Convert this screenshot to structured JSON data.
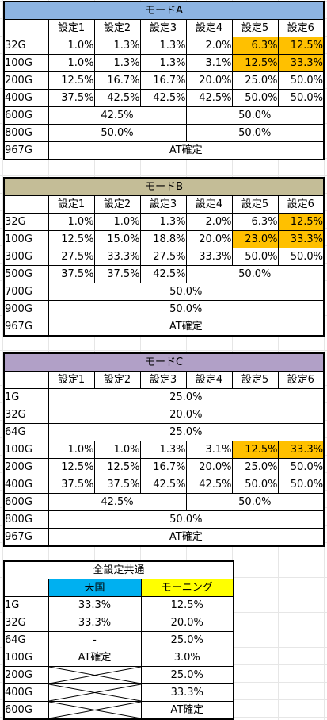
{
  "settings_header": [
    "設定1",
    "設定2",
    "設定3",
    "設定4",
    "設定5",
    "設定6"
  ],
  "mode_a": {
    "title": "モードA",
    "rows": [
      {
        "g": "32G",
        "cells": [
          {
            "v": "1.0%",
            "span": 1,
            "align": "num"
          },
          {
            "v": "1.3%",
            "span": 1,
            "align": "num"
          },
          {
            "v": "1.3%",
            "span": 1,
            "align": "num"
          },
          {
            "v": "2.0%",
            "span": 1,
            "align": "num"
          },
          {
            "v": "6.3%",
            "span": 1,
            "align": "num",
            "hl": true
          },
          {
            "v": "12.5%",
            "span": 1,
            "align": "num",
            "hl": true
          }
        ]
      },
      {
        "g": "100G",
        "cells": [
          {
            "v": "1.0%",
            "span": 1,
            "align": "num"
          },
          {
            "v": "1.3%",
            "span": 1,
            "align": "num"
          },
          {
            "v": "1.3%",
            "span": 1,
            "align": "num"
          },
          {
            "v": "3.1%",
            "span": 1,
            "align": "num"
          },
          {
            "v": "12.5%",
            "span": 1,
            "align": "num",
            "hl": true
          },
          {
            "v": "33.3%",
            "span": 1,
            "align": "num",
            "hl": true
          }
        ]
      },
      {
        "g": "200G",
        "cells": [
          {
            "v": "12.5%",
            "span": 1,
            "align": "num"
          },
          {
            "v": "16.7%",
            "span": 1,
            "align": "num"
          },
          {
            "v": "16.7%",
            "span": 1,
            "align": "num"
          },
          {
            "v": "20.0%",
            "span": 1,
            "align": "num"
          },
          {
            "v": "25.0%",
            "span": 1,
            "align": "num"
          },
          {
            "v": "50.0%",
            "span": 1,
            "align": "num"
          }
        ]
      },
      {
        "g": "400G",
        "cells": [
          {
            "v": "37.5%",
            "span": 1,
            "align": "num"
          },
          {
            "v": "42.5%",
            "span": 1,
            "align": "num"
          },
          {
            "v": "42.5%",
            "span": 1,
            "align": "num"
          },
          {
            "v": "42.5%",
            "span": 1,
            "align": "num"
          },
          {
            "v": "50.0%",
            "span": 1,
            "align": "num"
          },
          {
            "v": "50.0%",
            "span": 1,
            "align": "num"
          }
        ]
      },
      {
        "g": "600G",
        "cells": [
          {
            "v": "42.5%",
            "span": 3,
            "align": "ctr"
          },
          {
            "v": "50.0%",
            "span": 3,
            "align": "ctr"
          }
        ]
      },
      {
        "g": "800G",
        "cells": [
          {
            "v": "50.0%",
            "span": 3,
            "align": "ctr"
          },
          {
            "v": "50.0%",
            "span": 3,
            "align": "ctr"
          }
        ]
      },
      {
        "g": "967G",
        "cells": [
          {
            "v": "AT確定",
            "span": 6,
            "align": "ctr"
          }
        ]
      }
    ]
  },
  "mode_b": {
    "title": "モードB",
    "rows": [
      {
        "g": "32G",
        "cells": [
          {
            "v": "1.0%",
            "span": 1,
            "align": "num"
          },
          {
            "v": "1.0%",
            "span": 1,
            "align": "num"
          },
          {
            "v": "1.3%",
            "span": 1,
            "align": "num"
          },
          {
            "v": "2.0%",
            "span": 1,
            "align": "num"
          },
          {
            "v": "6.3%",
            "span": 1,
            "align": "num"
          },
          {
            "v": "12.5%",
            "span": 1,
            "align": "num",
            "hl": true
          }
        ]
      },
      {
        "g": "100G",
        "cells": [
          {
            "v": "12.5%",
            "span": 1,
            "align": "num"
          },
          {
            "v": "15.0%",
            "span": 1,
            "align": "num"
          },
          {
            "v": "18.8%",
            "span": 1,
            "align": "num"
          },
          {
            "v": "20.0%",
            "span": 1,
            "align": "num"
          },
          {
            "v": "23.0%",
            "span": 1,
            "align": "num",
            "hl": true
          },
          {
            "v": "33.3%",
            "span": 1,
            "align": "num",
            "hl": true
          }
        ]
      },
      {
        "g": "300G",
        "cells": [
          {
            "v": "27.5%",
            "span": 1,
            "align": "num"
          },
          {
            "v": "33.3%",
            "span": 1,
            "align": "num"
          },
          {
            "v": "27.5%",
            "span": 1,
            "align": "num"
          },
          {
            "v": "33.3%",
            "span": 1,
            "align": "num"
          },
          {
            "v": "50.0%",
            "span": 1,
            "align": "num"
          },
          {
            "v": "50.0%",
            "span": 1,
            "align": "num"
          }
        ]
      },
      {
        "g": "500G",
        "cells": [
          {
            "v": "37.5%",
            "span": 1,
            "align": "num"
          },
          {
            "v": "37.5%",
            "span": 1,
            "align": "num"
          },
          {
            "v": "42.5%",
            "span": 1,
            "align": "num"
          },
          {
            "v": "50.0%",
            "span": 3,
            "align": "ctr"
          }
        ]
      },
      {
        "g": "700G",
        "cells": [
          {
            "v": "50.0%",
            "span": 6,
            "align": "ctr"
          }
        ]
      },
      {
        "g": "900G",
        "cells": [
          {
            "v": "50.0%",
            "span": 6,
            "align": "ctr"
          }
        ]
      },
      {
        "g": "967G",
        "cells": [
          {
            "v": "AT確定",
            "span": 6,
            "align": "ctr"
          }
        ]
      }
    ]
  },
  "mode_c": {
    "title": "モードC",
    "rows": [
      {
        "g": "1G",
        "cells": [
          {
            "v": "25.0%",
            "span": 6,
            "align": "ctr"
          }
        ]
      },
      {
        "g": "32G",
        "cells": [
          {
            "v": "20.0%",
            "span": 6,
            "align": "ctr"
          }
        ]
      },
      {
        "g": "64G",
        "cells": [
          {
            "v": "25.0%",
            "span": 6,
            "align": "ctr"
          }
        ]
      },
      {
        "g": "100G",
        "cells": [
          {
            "v": "1.0%",
            "span": 1,
            "align": "num"
          },
          {
            "v": "1.0%",
            "span": 1,
            "align": "num"
          },
          {
            "v": "1.3%",
            "span": 1,
            "align": "num"
          },
          {
            "v": "3.1%",
            "span": 1,
            "align": "num"
          },
          {
            "v": "12.5%",
            "span": 1,
            "align": "num",
            "hl": true
          },
          {
            "v": "33.3%",
            "span": 1,
            "align": "num",
            "hl": true
          }
        ]
      },
      {
        "g": "200G",
        "cells": [
          {
            "v": "12.5%",
            "span": 1,
            "align": "num"
          },
          {
            "v": "12.5%",
            "span": 1,
            "align": "num"
          },
          {
            "v": "16.7%",
            "span": 1,
            "align": "num"
          },
          {
            "v": "20.0%",
            "span": 1,
            "align": "num"
          },
          {
            "v": "25.0%",
            "span": 1,
            "align": "num"
          },
          {
            "v": "50.0%",
            "span": 1,
            "align": "num"
          }
        ]
      },
      {
        "g": "400G",
        "cells": [
          {
            "v": "37.5%",
            "span": 1,
            "align": "num"
          },
          {
            "v": "37.5%",
            "span": 1,
            "align": "num"
          },
          {
            "v": "42.5%",
            "span": 1,
            "align": "num"
          },
          {
            "v": "42.5%",
            "span": 1,
            "align": "num"
          },
          {
            "v": "50.0%",
            "span": 1,
            "align": "num"
          },
          {
            "v": "50.0%",
            "span": 1,
            "align": "num"
          }
        ]
      },
      {
        "g": "600G",
        "cells": [
          {
            "v": "42.5%",
            "span": 3,
            "align": "ctr"
          },
          {
            "v": "50.0%",
            "span": 3,
            "align": "ctr"
          }
        ]
      },
      {
        "g": "800G",
        "cells": [
          {
            "v": "50.0%",
            "span": 6,
            "align": "ctr"
          }
        ]
      },
      {
        "g": "967G",
        "cells": [
          {
            "v": "AT確定",
            "span": 6,
            "align": "ctr"
          }
        ]
      }
    ]
  },
  "common": {
    "title": "全設定共通",
    "col_tengoku": "天国",
    "col_morning": "モーニング",
    "rows": [
      {
        "g": "1G",
        "tengoku": "33.3%",
        "morning": "12.5%"
      },
      {
        "g": "32G",
        "tengoku": "33.3%",
        "morning": "20.0%"
      },
      {
        "g": "64G",
        "tengoku": "-",
        "morning": "25.0%"
      },
      {
        "g": "100G",
        "tengoku": "AT確定",
        "morning": "3.0%"
      },
      {
        "g": "200G",
        "tengoku": null,
        "morning": "25.0%"
      },
      {
        "g": "400G",
        "tengoku": null,
        "morning": "33.3%"
      },
      {
        "g": "600G",
        "tengoku": null,
        "morning": "AT確定"
      }
    ]
  },
  "colors": {
    "mode_a_title": "#8db4e2",
    "mode_b_title": "#c4bd97",
    "mode_c_title": "#b1a0c7",
    "highlight": "#ffc000",
    "tengoku_header": "#00b0f0",
    "morning_header": "#ffff00"
  }
}
